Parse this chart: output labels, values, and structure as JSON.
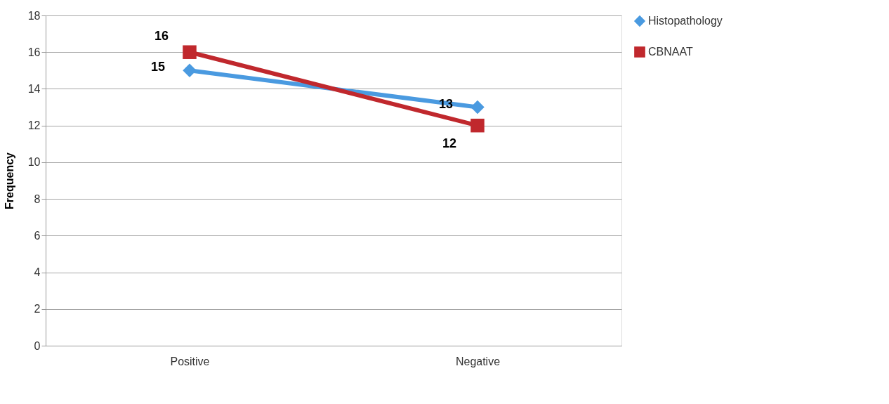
{
  "chart_data": {
    "type": "line",
    "ylabel": "Frequency",
    "categories": [
      "Positive",
      "Negative"
    ],
    "series": [
      {
        "name": "Histopathology",
        "color": "#4a9ae0",
        "values": [
          15,
          13
        ],
        "marker": "diamond"
      },
      {
        "name": "CBNAAT",
        "color": "#c0282d",
        "values": [
          16,
          12
        ],
        "marker": "square"
      }
    ],
    "ylim": [
      0,
      18
    ],
    "yticks": [
      0,
      2,
      4,
      6,
      8,
      10,
      12,
      14,
      16,
      18
    ],
    "grid": "y",
    "legend": "right",
    "data_labels": true
  }
}
